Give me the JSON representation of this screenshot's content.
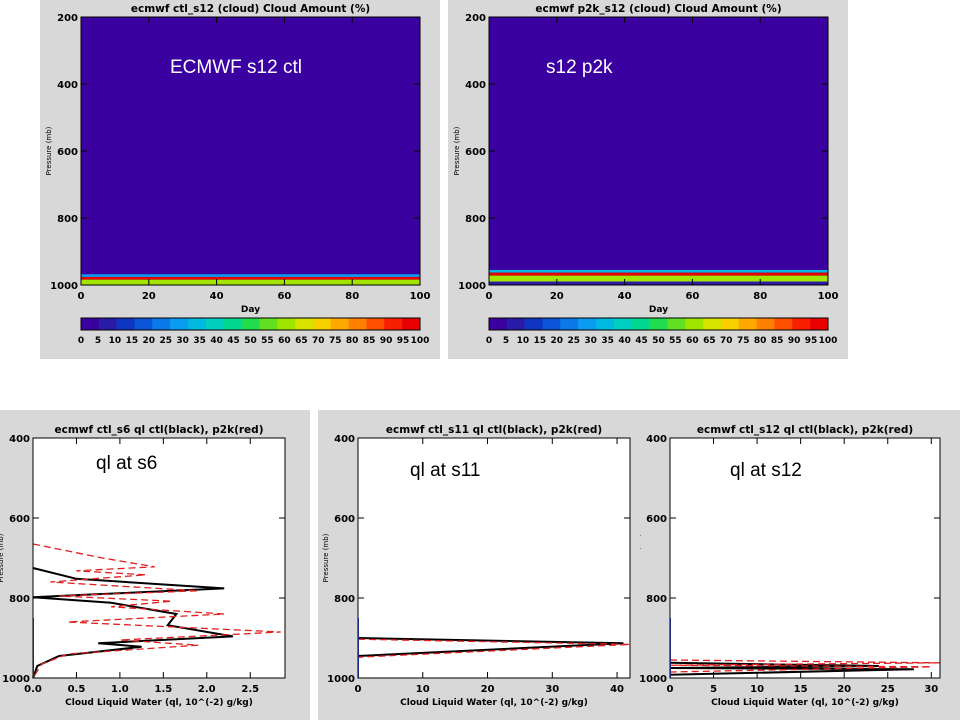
{
  "chart_data": [
    {
      "type": "heatmap",
      "title": "ecmwf ctl_s12   (cloud)   Cloud Amount (%)",
      "overlay_label": "ECMWF s12 ctl",
      "xlabel": "Day",
      "ylabel": "Pressure (mb)",
      "xlim": [
        0,
        100
      ],
      "ylim": [
        1000,
        200
      ],
      "xticks": [
        0,
        20,
        40,
        60,
        80,
        100
      ],
      "yticks": [
        200,
        400,
        600,
        800,
        1000
      ],
      "background_value": 0,
      "bands": [
        {
          "p_top": 968,
          "p_bottom": 976,
          "value": 30
        },
        {
          "p_top": 976,
          "p_bottom": 984,
          "value": 95
        },
        {
          "p_top": 984,
          "p_bottom": 1000,
          "value": 60
        }
      ],
      "colorbar": {
        "ticks": [
          0,
          5,
          10,
          15,
          20,
          25,
          30,
          35,
          40,
          45,
          50,
          55,
          60,
          65,
          70,
          75,
          80,
          85,
          90,
          95,
          100
        ],
        "colors": [
          "#3a00a0",
          "#2a1aa8",
          "#0f36c0",
          "#0a55d8",
          "#0b7ae8",
          "#0a9cf0",
          "#00b8e0",
          "#00cfc0",
          "#00d890",
          "#22dc50",
          "#60e020",
          "#a0e400",
          "#d8e400",
          "#f8d000",
          "#ffa800",
          "#ff8000",
          "#ff5000",
          "#f82000",
          "#e80000"
        ]
      }
    },
    {
      "type": "heatmap",
      "title": "ecmwf p2k_s12   (cloud)   Cloud Amount (%)",
      "overlay_label": "s12 p2k",
      "xlabel": "Day",
      "ylabel": "Pressure (mb)",
      "xlim": [
        0,
        100
      ],
      "ylim": [
        1000,
        200
      ],
      "xticks": [
        0,
        20,
        40,
        60,
        80,
        100
      ],
      "yticks": [
        200,
        400,
        600,
        800,
        1000
      ],
      "background_value": 0,
      "bands": [
        {
          "p_top": 955,
          "p_bottom": 963,
          "value": 35
        },
        {
          "p_top": 963,
          "p_bottom": 972,
          "value": 95
        },
        {
          "p_top": 972,
          "p_bottom": 990,
          "value": 60
        },
        {
          "p_top": 990,
          "p_bottom": 1000,
          "value": 10
        }
      ],
      "colorbar": {
        "ticks": [
          0,
          5,
          10,
          15,
          20,
          25,
          30,
          35,
          40,
          45,
          50,
          55,
          60,
          65,
          70,
          75,
          80,
          85,
          90,
          95,
          100
        ],
        "colors": [
          "#3a00a0",
          "#2a1aa8",
          "#0f36c0",
          "#0a55d8",
          "#0b7ae8",
          "#0a9cf0",
          "#00b8e0",
          "#00cfc0",
          "#00d890",
          "#22dc50",
          "#60e020",
          "#a0e400",
          "#d8e400",
          "#f8d000",
          "#ffa800",
          "#ff8000",
          "#ff5000",
          "#f82000",
          "#e80000"
        ]
      }
    },
    {
      "type": "line",
      "title": "ecmwf ctl_s6 ql ctl(black), p2k(red)",
      "overlay_label": "ql at s6",
      "xlabel": "Cloud Liquid Water (ql, 10^(-2) g/kg)",
      "ylabel": "Pressure (mb)",
      "xlim": [
        0,
        2.9
      ],
      "ylim": [
        1000,
        400
      ],
      "xticks": [
        0.0,
        0.5,
        1.0,
        1.5,
        2.0,
        2.5
      ],
      "xtick_labels": [
        "0.0",
        "0.5",
        "1.0",
        "1.5",
        "2.0",
        "2.5"
      ],
      "yticks": [
        400,
        600,
        800,
        1000
      ],
      "series": [
        {
          "name": "ctl",
          "color": "#000000",
          "dash": "solid",
          "points": [
            [
              0,
              725
            ],
            [
              0.5,
              752
            ],
            [
              2.2,
              776
            ],
            [
              0.6,
              792
            ],
            [
              0,
              798
            ],
            [
              0.9,
              812
            ],
            [
              1.65,
              840
            ],
            [
              1.55,
              868
            ],
            [
              2.3,
              896
            ],
            [
              0.75,
              913
            ],
            [
              1.25,
              922
            ],
            [
              0.3,
              945
            ],
            [
              0.05,
              970
            ],
            [
              0,
              1000
            ]
          ]
        },
        {
          "name": "p2k",
          "color": "#e02020",
          "dash": "dashed",
          "points": [
            [
              0,
              665
            ],
            [
              0.8,
              700
            ],
            [
              1.4,
              722
            ],
            [
              0.5,
              732
            ],
            [
              1.3,
              742
            ],
            [
              0.2,
              760
            ],
            [
              1.9,
              782
            ],
            [
              0.3,
              795
            ],
            [
              1.6,
              808
            ],
            [
              0.9,
              822
            ],
            [
              2.2,
              840
            ],
            [
              0.4,
              860
            ],
            [
              2.85,
              885
            ],
            [
              1.0,
              905
            ],
            [
              1.9,
              918
            ],
            [
              0.4,
              940
            ],
            [
              0.1,
              965
            ],
            [
              0,
              1000
            ]
          ]
        }
      ]
    },
    {
      "type": "line",
      "title": "ecmwf ctl_s11 ql ctl(black), p2k(red)",
      "overlay_label": "ql at s11",
      "xlabel": "Cloud Liquid Water (ql, 10^(-2) g/kg)",
      "ylabel": "Pressure (mb)",
      "xlim": [
        0,
        42
      ],
      "ylim": [
        1000,
        400
      ],
      "xticks": [
        0,
        10,
        20,
        30,
        40
      ],
      "xtick_labels": [
        "0",
        "10",
        "20",
        "30",
        "40"
      ],
      "yticks": [
        400,
        600,
        800,
        1000
      ],
      "series": [
        {
          "name": "ctl",
          "color": "#000000",
          "dash": "solid",
          "points": [
            [
              0,
              900
            ],
            [
              41,
              913
            ],
            [
              0,
              945
            ]
          ]
        },
        {
          "name": "p2k",
          "color": "#e02020",
          "dash": "dashed",
          "points": [
            [
              0,
              903
            ],
            [
              42,
              916
            ],
            [
              0,
              948
            ]
          ]
        }
      ]
    },
    {
      "type": "line",
      "title": "ecmwf ctl_s12 ql ctl(black), p2k(red)",
      "overlay_label": "ql at s12",
      "xlabel": "Cloud Liquid Water (ql, 10^(-2) g/kg)",
      "ylabel": "Pressure (mb)",
      "xlim": [
        0,
        31
      ],
      "ylim": [
        1000,
        400
      ],
      "xticks": [
        0,
        5,
        10,
        15,
        20,
        25,
        30
      ],
      "xtick_labels": [
        "0",
        "5",
        "10",
        "15",
        "20",
        "25",
        "30"
      ],
      "yticks": [
        400,
        600,
        800,
        1000
      ],
      "series": [
        {
          "name": "ctl",
          "color": "#000000",
          "dash": "solid",
          "points": [
            [
              0,
              962
            ],
            [
              24,
              970
            ],
            [
              0,
              975
            ],
            [
              28,
              978
            ],
            [
              0,
              992
            ]
          ]
        },
        {
          "name": "p2k",
          "color": "#e02020",
          "dash": "dashed",
          "points": [
            [
              0,
              955
            ],
            [
              31,
              962
            ],
            [
              0,
              968
            ],
            [
              30,
              972
            ],
            [
              0,
              985
            ]
          ]
        }
      ]
    }
  ]
}
